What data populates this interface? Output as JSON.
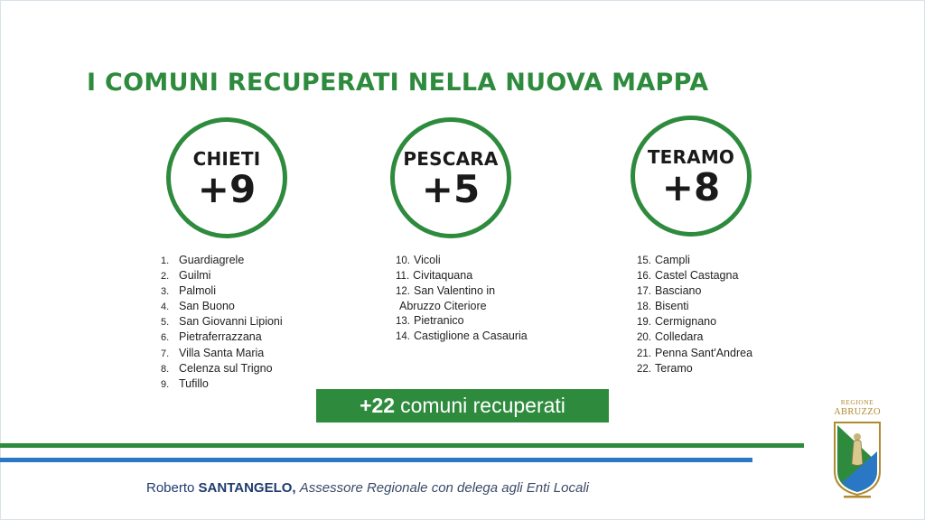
{
  "title": "I COMUNI RECUPERATI NELLA NUOVA MAPPA",
  "provinces": [
    {
      "name": "CHIETI",
      "count": "+9",
      "items": [
        {
          "n": "1.",
          "name": "Guardiagrele"
        },
        {
          "n": "2.",
          "name": "Guilmi"
        },
        {
          "n": "3.",
          "name": "Palmoli"
        },
        {
          "n": "4.",
          "name": "San Buono"
        },
        {
          "n": "5.",
          "name": "San Giovanni Lipioni"
        },
        {
          "n": "6.",
          "name": "Pietraferrazzana"
        },
        {
          "n": "7.",
          "name": "Villa Santa Maria"
        },
        {
          "n": "8.",
          "name": "Celenza sul Trigno"
        },
        {
          "n": "9.",
          "name": "Tufillo"
        }
      ]
    },
    {
      "name": "PESCARA",
      "count": "+5",
      "items": [
        {
          "n": "10.",
          "name": "Vicoli"
        },
        {
          "n": "11.",
          "name": "Civitaquana"
        },
        {
          "n": "12.",
          "name": "San Valentino in"
        },
        {
          "n": "",
          "name": "Abruzzo Citeriore"
        },
        {
          "n": "13.",
          "name": "Pietranico"
        },
        {
          "n": "14.",
          "name": "Castiglione a Casauria"
        }
      ]
    },
    {
      "name": "TERAMO",
      "count": "+8",
      "items": [
        {
          "n": "15.",
          "name": "Campli"
        },
        {
          "n": "16.",
          "name": "Castel Castagna"
        },
        {
          "n": "17.",
          "name": "Basciano"
        },
        {
          "n": "18.",
          "name": "Bisenti"
        },
        {
          "n": "19.",
          "name": "Cermignano"
        },
        {
          "n": "20.",
          "name": "Colledara"
        },
        {
          "n": "21.",
          "name": "Penna Sant'Andrea"
        },
        {
          "n": "22.",
          "name": "Teramo"
        }
      ]
    }
  ],
  "total": {
    "number": "+22",
    "label": "comuni recuperati"
  },
  "footer": {
    "first_name": "Roberto",
    "last_name": "SANTANGELO,",
    "role": "Assessore Regionale con delega agli Enti Locali"
  },
  "logo": {
    "line1": "REGIONE",
    "line2": "ABRUZZO"
  },
  "colors": {
    "green": "#2e8b3d",
    "blue": "#2a78c5",
    "navy": "#1f3c6e"
  }
}
